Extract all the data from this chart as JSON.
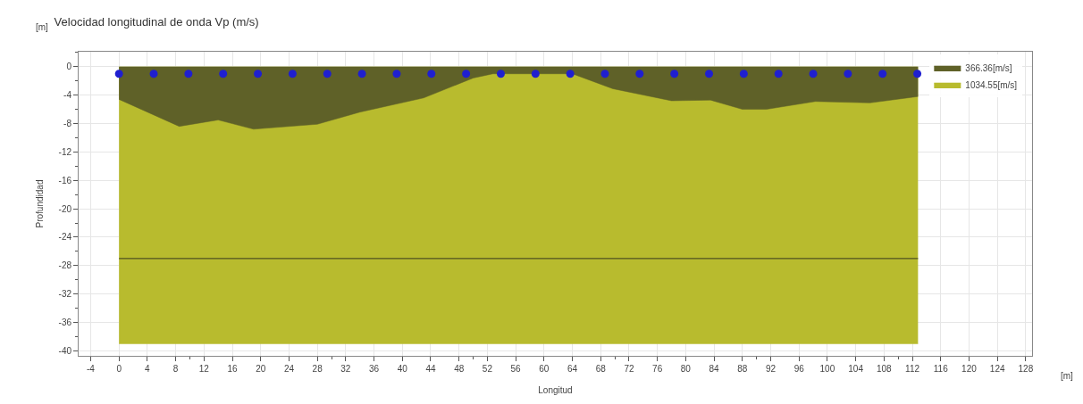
{
  "chart_data": {
    "type": "area",
    "title": "Velocidad longitudinal de onda Vp (m/s)",
    "xlabel": "Longitud",
    "ylabel": "Profundidad",
    "annotations": [
      "[m]",
      "[m]"
    ],
    "x": [
      0,
      8.5,
      14,
      19,
      28,
      34,
      43,
      50,
      52.8,
      58,
      64,
      69.7,
      78,
      83.5,
      88,
      91.4,
      98.3,
      106,
      112.8
    ],
    "series": [
      {
        "name": "366.36[m/s]",
        "color": "#5f6128",
        "values": [
          -4.6,
          -8.4,
          -7.5,
          -8.8,
          -8.1,
          -6.4,
          -4.4,
          -1.6,
          -1,
          -1,
          -1,
          -3.1,
          -4.8,
          -4.7,
          -6.0,
          -6.0,
          -4.9,
          -5.1,
          -4.2
        ]
      },
      {
        "name": "1034.55[m/s]",
        "color": "#b8bb2e",
        "values": [
          -39,
          -39,
          -39,
          -39,
          -39,
          -39,
          -39,
          -39,
          -39,
          -39,
          -39,
          -39,
          -39,
          -39,
          -39,
          -39,
          -39,
          -39,
          -39
        ]
      },
      {
        "type": "line",
        "color": "#4f5020",
        "x": [
          0,
          112.8
        ],
        "values": [
          -27,
          -27
        ]
      },
      {
        "type": "scatter",
        "color": "#1f1fd0",
        "marker": "circle",
        "x": [
          0,
          4.9,
          9.8,
          14.7,
          19.6,
          24.5,
          29.4,
          34.3,
          39.2,
          44.1,
          49,
          53.9,
          58.8,
          63.7,
          68.6,
          73.5,
          78.4,
          83.3,
          88.2,
          93.1,
          98,
          102.9,
          107.8,
          112.7
        ],
        "values": [
          -1,
          -1,
          -1,
          -1,
          -1,
          -1,
          -1,
          -1,
          -1,
          -1,
          -1,
          -1,
          -1,
          -1,
          -1,
          -1,
          -1,
          -1,
          -1,
          -1,
          -1,
          -1,
          -1,
          -1
        ]
      }
    ],
    "xlim": [
      -5.7,
      128.9
    ],
    "xticks": [
      -4,
      0,
      4,
      8,
      12,
      16,
      20,
      24,
      28,
      32,
      36,
      40,
      44,
      48,
      52,
      56,
      60,
      64,
      68,
      72,
      76,
      80,
      84,
      88,
      92,
      96,
      100,
      104,
      108,
      112,
      116,
      120,
      124,
      128
    ],
    "ylim": [
      -40.7,
      2.1
    ],
    "yticks": [
      0,
      -4,
      -8,
      -12,
      -16,
      -20,
      -24,
      -28,
      -32,
      -36,
      -40
    ],
    "grid": true,
    "legend": "top right"
  }
}
